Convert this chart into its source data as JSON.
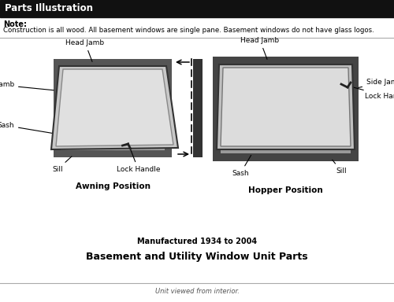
{
  "title": "Parts Illustration",
  "note_bold": "Note:",
  "note_text": "Construction is all wood. All basement windows are single pane. Basement windows do not have glass logos.",
  "awning_label": "Awning Position",
  "hopper_label": "Hopper Position",
  "manufactured": "Manufactured 1934 to 2004",
  "unit_parts": "Basement and Utility Window Unit Parts",
  "interior_note": "Unit viewed from interior.",
  "bg_color": "#ffffff",
  "title_bg": "#111111",
  "title_color": "#ffffff"
}
